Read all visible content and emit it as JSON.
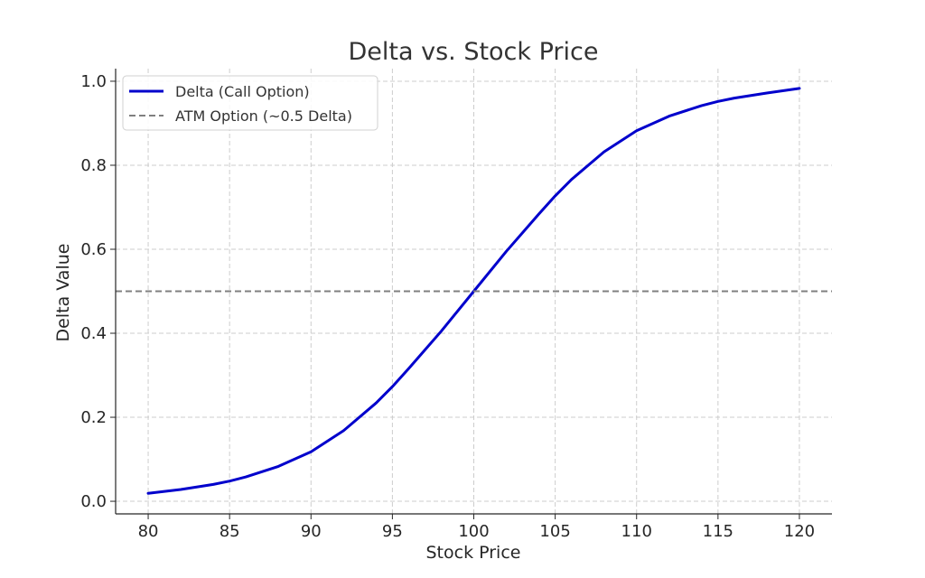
{
  "chart_data": {
    "type": "line",
    "title": "Delta vs. Stock Price",
    "xlabel": "Stock Price",
    "ylabel": "Delta Value",
    "xlim": [
      78,
      122
    ],
    "ylim": [
      -0.03,
      1.03
    ],
    "x_ticks": [
      80,
      85,
      90,
      95,
      100,
      105,
      110,
      115,
      120
    ],
    "x_tick_labels": [
      "80",
      "85",
      "90",
      "95",
      "100",
      "105",
      "110",
      "115",
      "120"
    ],
    "y_ticks": [
      0.0,
      0.2,
      0.4,
      0.6,
      0.8,
      1.0
    ],
    "y_tick_labels": [
      "0.0",
      "0.2",
      "0.4",
      "0.6",
      "0.8",
      "1.0"
    ],
    "grid": true,
    "legend_position": "top-left",
    "series": [
      {
        "name": "Delta (Call Option)",
        "kind": "line",
        "color": "#0000cc",
        "style": "solid",
        "x": [
          80,
          82,
          84,
          85,
          86,
          88,
          90,
          92,
          94,
          95,
          96,
          98,
          100,
          102,
          104,
          105,
          106,
          108,
          110,
          112,
          114,
          115,
          116,
          118,
          120
        ],
        "y": [
          0.019,
          0.028,
          0.04,
          0.048,
          0.058,
          0.083,
          0.118,
          0.168,
          0.234,
          0.273,
          0.316,
          0.405,
          0.5,
          0.595,
          0.684,
          0.727,
          0.766,
          0.832,
          0.882,
          0.917,
          0.942,
          0.952,
          0.96,
          0.972,
          0.983
        ]
      },
      {
        "name": "ATM Option (~0.5 Delta)",
        "kind": "hline",
        "color": "#808080",
        "style": "dashed",
        "y": 0.5
      }
    ]
  }
}
